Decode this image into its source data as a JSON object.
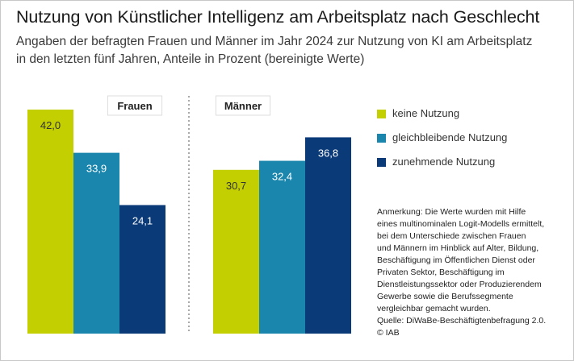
{
  "title": "Nutzung von Künstlicher Intelligenz am Arbeitsplatz nach Geschlecht",
  "subtitle_lines": [
    "Angaben der befragten Frauen und Männer im Jahr 2024 zur Nutzung von KI am Arbeitsplatz",
    "in den letzten fünf Jahren, Anteile in Prozent (bereinigte Werte)"
  ],
  "colors": {
    "keine": "#c3cf00",
    "gleichbleibend": "#1a86ad",
    "zunehmend": "#0b3a78",
    "divider": "#aaaaaa"
  },
  "chart_data": {
    "type": "bar",
    "title": "Nutzung von Künstlicher Intelligenz am Arbeitsplatz nach Geschlecht",
    "groups": [
      "Frauen",
      "Männer"
    ],
    "series": [
      {
        "name": "keine Nutzung",
        "color_key": "keine",
        "values": [
          42.0,
          30.7
        ],
        "labels": [
          "42,0",
          "30,7"
        ]
      },
      {
        "name": "gleichbleibende Nutzung",
        "color_key": "gleichbleibend",
        "values": [
          33.9,
          32.4
        ],
        "labels": [
          "33,9",
          "32,4"
        ]
      },
      {
        "name": "zunehmende Nutzung",
        "color_key": "zunehmend",
        "values": [
          24.1,
          36.8
        ],
        "labels": [
          "24,1",
          "36,8"
        ]
      }
    ],
    "ylim": [
      0,
      42.0
    ],
    "xlabel": "",
    "ylabel": "",
    "grid": false,
    "legend": "right"
  },
  "note_lines": [
    "Anmerkung: Die Werte wurden mit Hilfe",
    "eines multinominalen Logit-Modells ermittelt,",
    "bei dem Unterschiede zwischen Frauen",
    "und Männern im Hinblick auf Alter, Bildung,",
    "Beschäftigung im Öffentlichen Dienst oder",
    "Privaten Sektor, Beschäftigung im",
    "Dienstleistungssektor oder Produzierendem",
    "Gewerbe sowie die Berufssegmente",
    "vergleichbar gemacht wurden."
  ],
  "source": "Quelle: DiWaBe-Beschäftigtenbefragung 2.0.",
  "copyright": "© IAB"
}
